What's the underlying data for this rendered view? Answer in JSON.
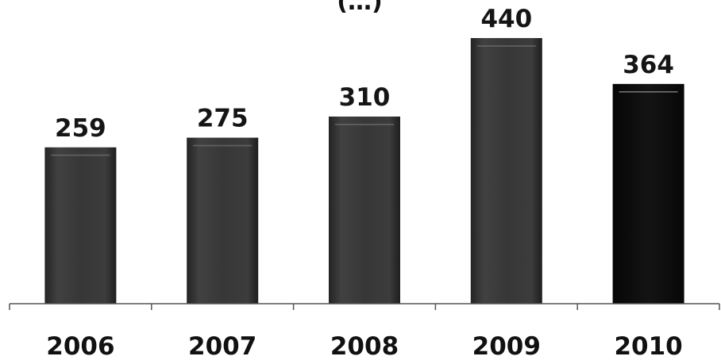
{
  "chart_data": {
    "type": "bar",
    "title": "(…)",
    "categories": [
      "2006",
      "2007",
      "2008",
      "2009",
      "2010"
    ],
    "values": [
      259,
      275,
      310,
      440,
      364
    ],
    "data_labels": [
      "259",
      "275",
      "310",
      "440",
      "364"
    ],
    "ylim": [
      0,
      440
    ],
    "grid": false,
    "legend": "none",
    "colors": {
      "bar": "#3a3a3a",
      "bar_highlight": "#111111",
      "axis": "#444444",
      "text": "#111111"
    }
  }
}
